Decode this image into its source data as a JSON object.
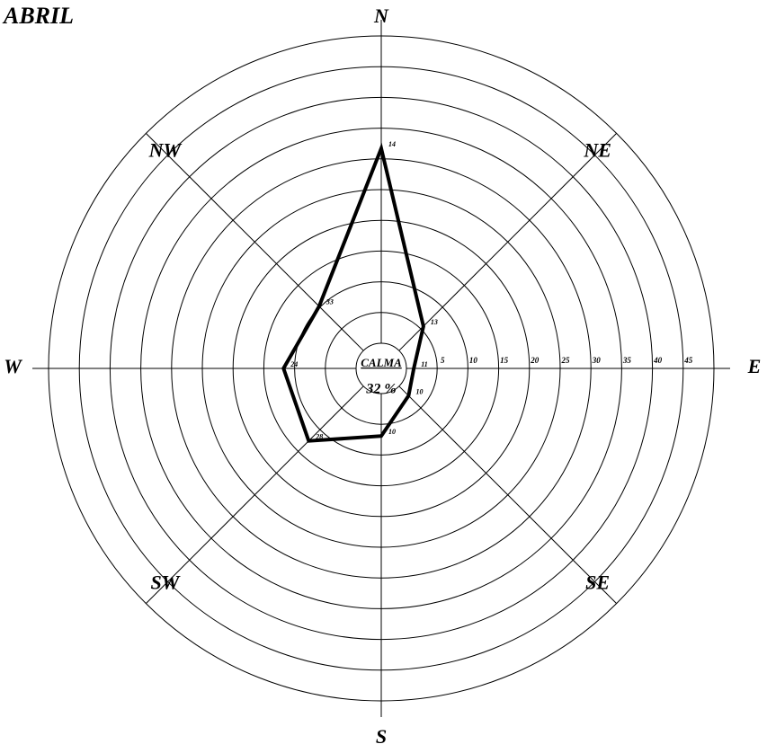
{
  "chart_data": {
    "type": "radar",
    "title": "ABRIL",
    "categories": [
      "N",
      "NE",
      "E",
      "SE",
      "S",
      "SW",
      "W",
      "NW"
    ],
    "values": [
      31.7,
      5.6,
      1.2,
      2.2,
      6.9,
      12.6,
      11.8,
      10.2
    ],
    "point_labels": [
      "14",
      "13",
      "11",
      "10",
      "10",
      "28",
      "24",
      "33"
    ],
    "color": "#000000",
    "rlim": [
      0,
      50
    ],
    "rticks": [
      5,
      10,
      15,
      20,
      25,
      30,
      35,
      40,
      45
    ],
    "calm": {
      "label": "CALMA",
      "value": 32,
      "value_label": "32 %"
    }
  }
}
